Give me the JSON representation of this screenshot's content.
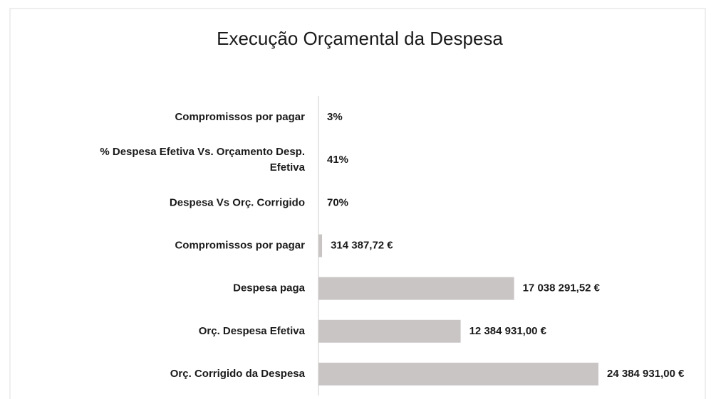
{
  "chart_data": {
    "type": "hbar",
    "title": "Execução Orçamental da Despesa",
    "categories": [
      "Compromissos por pagar",
      "% Despesa Efetiva Vs. Orçamento Desp. Efetiva",
      "Despesa Vs Orç. Corrigido",
      "Compromissos por pagar",
      "Despesa paga",
      "Orç. Despesa Efetiva",
      "Orç. Corrigido da Despesa"
    ],
    "values": [
      3,
      41,
      70,
      314387.72,
      17038291.52,
      12384931.0,
      24384931.0
    ],
    "value_labels": [
      "3%",
      "41%",
      "70%",
      "314 387,72 €",
      "17 038 291,52 €",
      "12 384 931,00 €",
      "24 384 931,00 €"
    ],
    "color": "#c9c5c5"
  }
}
